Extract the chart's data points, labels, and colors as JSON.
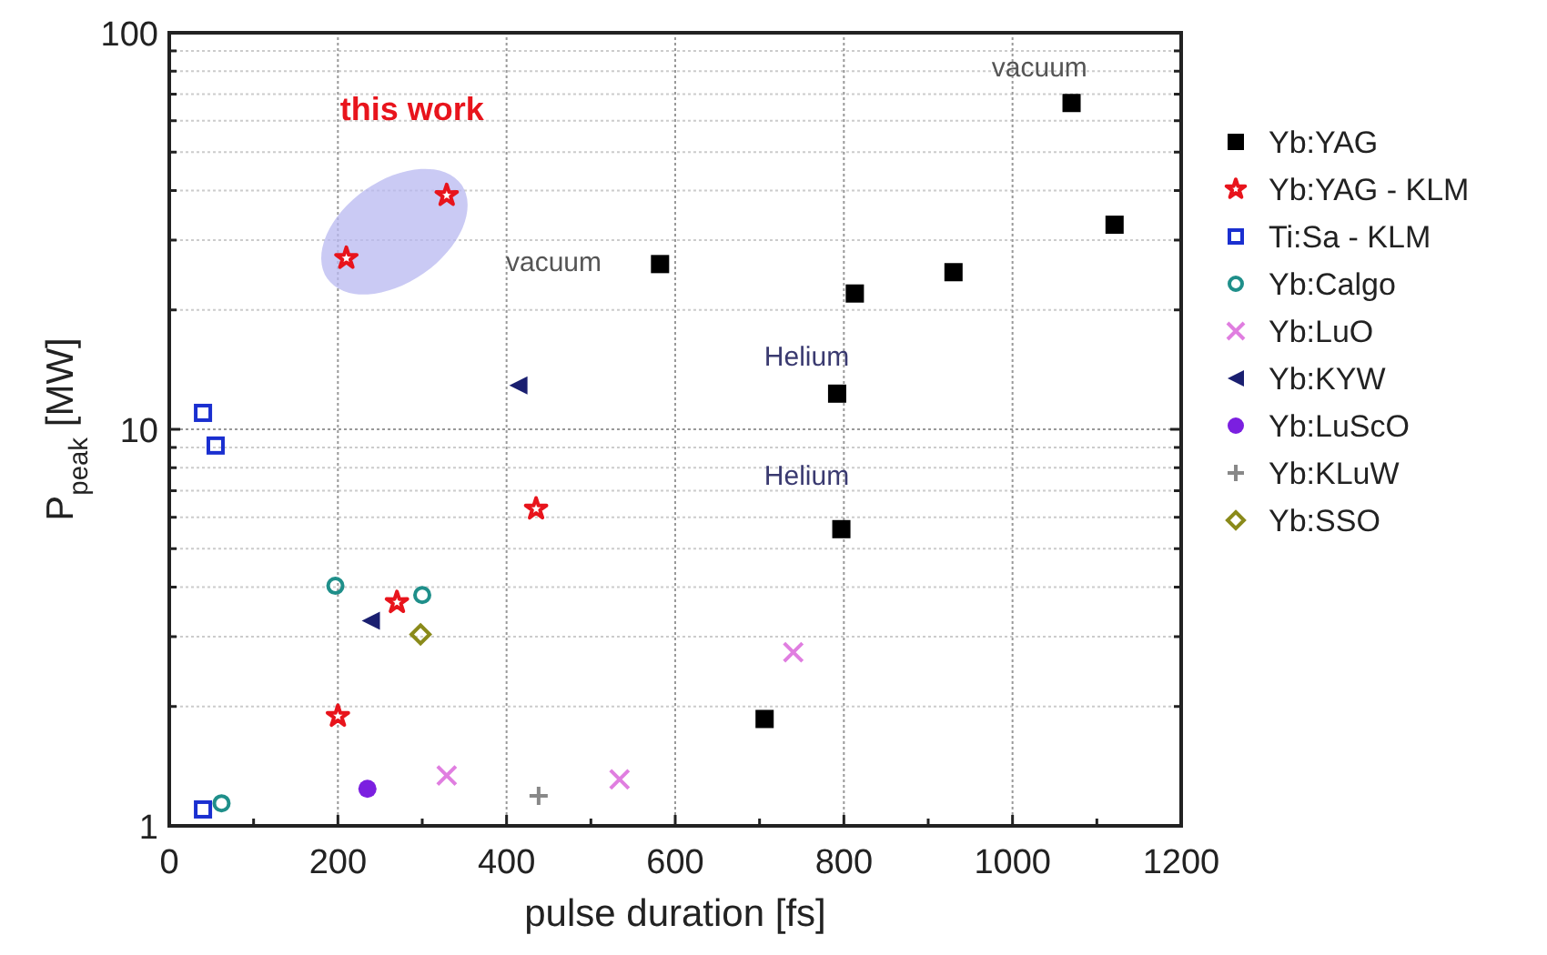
{
  "chart_data": {
    "type": "scatter",
    "xlabel": "pulse duration [fs]",
    "ylabel": "P$_{peak}$ [MW]",
    "log": "y",
    "grid": true,
    "legend": "right",
    "xlim": [
      0,
      1200
    ],
    "xticks": [
      0,
      {
        "value": 100,
        "label": null
      },
      200,
      {
        "value": 300,
        "label": null
      },
      400,
      {
        "value": 500,
        "label": null
      },
      600,
      {
        "value": 700,
        "label": null
      },
      800,
      {
        "value": 900,
        "label": null
      },
      1000,
      {
        "value": 1100,
        "label": null
      },
      1200
    ],
    "ylim": [
      1,
      100
    ],
    "yticks": [
      1,
      {
        "value": 2,
        "label": null
      },
      {
        "value": 3,
        "label": null
      },
      {
        "value": 4,
        "label": null
      },
      {
        "value": 5,
        "label": null
      },
      {
        "value": 6,
        "label": null
      },
      {
        "value": 7,
        "label": null
      },
      {
        "value": 8,
        "label": null
      },
      {
        "value": 9,
        "label": null
      },
      10,
      {
        "value": 20,
        "label": null
      },
      {
        "value": 30,
        "label": null
      },
      {
        "value": 40,
        "label": null
      },
      {
        "value": 50,
        "label": null
      },
      {
        "value": 60,
        "label": null
      },
      {
        "value": 70,
        "label": null
      },
      {
        "value": 80,
        "label": null
      },
      {
        "value": 90,
        "label": null
      },
      100
    ],
    "series": [
      {
        "name": "Yb:YAG",
        "color": "#000000",
        "marker": "square",
        "x": [
          582,
          1070,
          1121,
          930,
          813,
          792,
          797,
          706
        ],
        "values": [
          26.1,
          66.5,
          32.8,
          24.9,
          22,
          12.3,
          5.6,
          1.86
        ]
      },
      {
        "name": "Yb:YAG - KLM",
        "color": "#e8141c",
        "marker": "star",
        "x": [
          210,
          329,
          435,
          270,
          200
        ],
        "values": [
          27,
          38.9,
          6.3,
          3.66,
          1.89
        ]
      },
      {
        "name": "Ti:Sa - KLM",
        "color": "#1a2fd0",
        "marker": "square",
        "x": [
          40,
          55,
          40
        ],
        "values": [
          11,
          9.1,
          1.1
        ]
      },
      {
        "name": "Yb:Calgo",
        "color": "#1f8f8a",
        "marker": "circle",
        "x": [
          197,
          300,
          62
        ],
        "values": [
          4.03,
          3.82,
          1.14
        ]
      },
      {
        "name": "Yb:LuO",
        "color": "#e07ee0",
        "marker": "cross",
        "x": [
          329,
          534,
          740
        ],
        "values": [
          1.34,
          1.31,
          2.74
        ]
      },
      {
        "name": "Yb:KYW",
        "color": "#1a1f70",
        "marker": "triangle",
        "x": [
          414,
          239
        ],
        "values": [
          12.9,
          3.29
        ]
      },
      {
        "name": "Yb:LuScO",
        "color": "#7b1fe0",
        "marker": "circle",
        "x": [
          235
        ],
        "values": [
          1.24
        ]
      },
      {
        "name": "Yb:KLuW",
        "color": "#888888",
        "marker": "plus",
        "x": [
          438
        ],
        "values": [
          1.19
        ]
      },
      {
        "name": "Yb:SSO",
        "color": "#8a8a1a",
        "marker": "diamond",
        "x": [
          298
        ],
        "values": [
          3.04
        ]
      }
    ],
    "annotations": [
      "this work",
      "vacuum",
      "vacuum",
      "Helium",
      "Helium"
    ]
  }
}
